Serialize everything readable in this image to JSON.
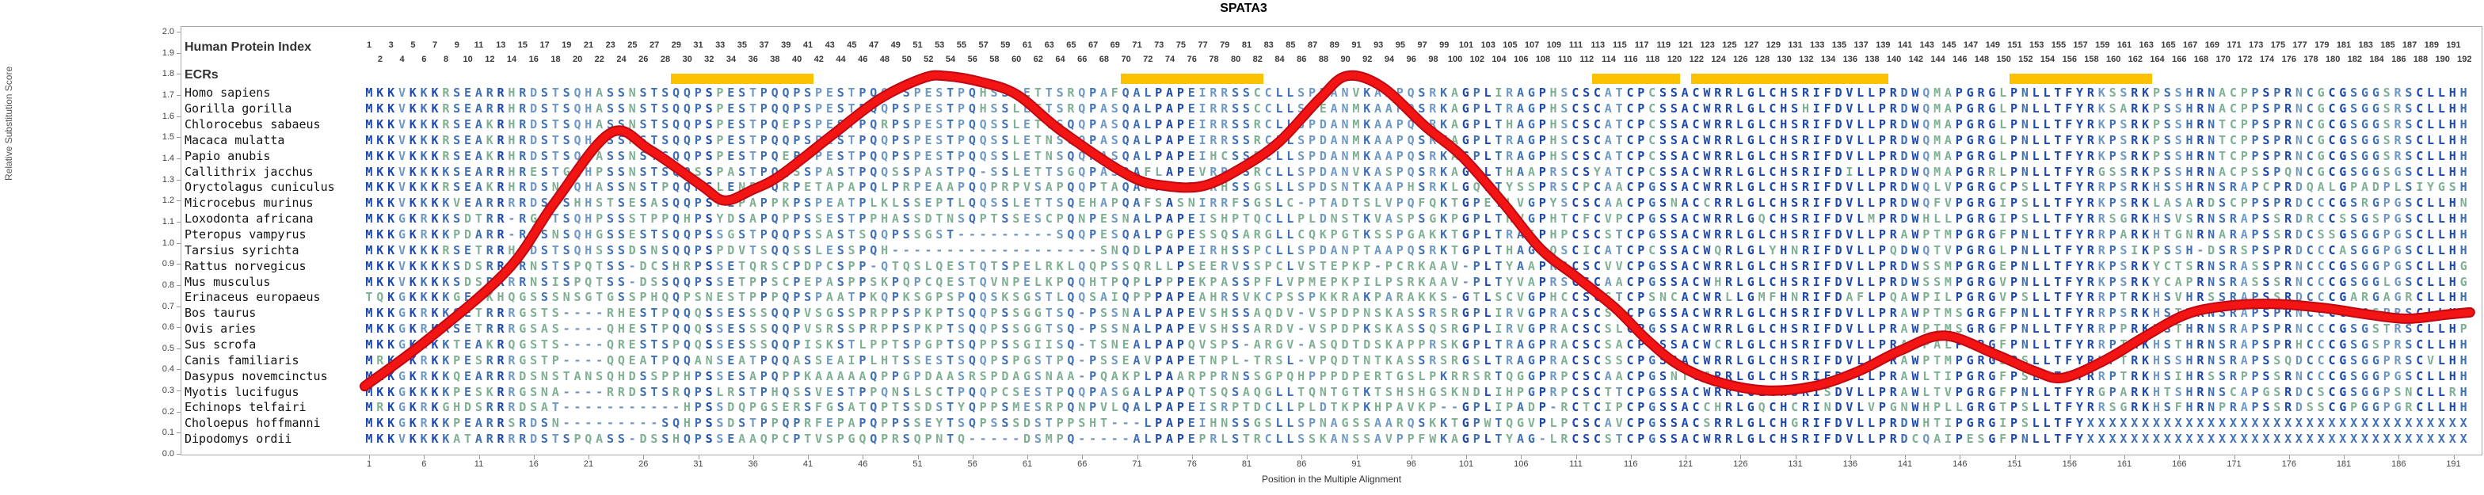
{
  "title": "SPATA3",
  "header": {
    "index_label": "Human Protein Index",
    "ecr_label": "ECRs"
  },
  "y_axis": {
    "label": "Relative Substitution Score",
    "min": 0.0,
    "max": 2.0,
    "step": 0.1
  },
  "x_axis": {
    "label": "Position in the Multiple Alignment",
    "tick_start": 1,
    "tick_step": 5,
    "tick_end": 191
  },
  "ruler": {
    "start": 1,
    "end": 192
  },
  "colors": {
    "ecr_bar": "#fcc200",
    "curve_inner": "#f31414",
    "curve_outer": "#bf0811",
    "res_high": "#1d49ac",
    "res_med": "#3f6fb5",
    "res_low": "#6f99c5",
    "res_var": "#7fb093"
  },
  "ecr_bars": [
    {
      "start_col": 29,
      "end_col": 41
    },
    {
      "start_col": 70,
      "end_col": 82
    },
    {
      "start_col": 113,
      "end_col": 120
    },
    {
      "start_col": 122,
      "end_col": 139
    },
    {
      "start_col": 151,
      "end_col": 163
    }
  ],
  "alignment": {
    "species": [
      {
        "name": "Homo sapiens",
        "seq": "MKKVKKKRSEARRHRDSTSQHASSNSTSQQPSPESTPQQPSPESTPQQPSPESTPQHSSLETTSRQPAFQALPAPEIRRSSCCLLSPDANVKAAPQSRKAGPLIRAGPHSCSCATCPCSSACWRRLGLCHSRIFDVLLPRDWQMAPGRGLPNLLTFYRKSSRKPSSHRNACPPSPRNCGCGSGGSRSCLLHH"
      },
      {
        "name": "Gorilla gorilla",
        "seq": "MKKVKKKRSEARRHRDSTSQHASSNSTSQQPSPESTPQQPSPESTPQQPSPESTPQHSSLETTSRQPASQALPAPEIRRSSCCLLSPEANMKAAPQSRKAGPLTRAGPHSCSCATCPCSSACWRRLGLCHSHIFDVLLPRDWQMAPGRGLPNLLTFYRKSARKPSSHRNACPPSPRNCGCGSGGSRSCLLHH"
      },
      {
        "name": "Chlorocebus sabaeus",
        "seq": "MKKVKKKRSEAKRHRDSTSQHASSNSTSQQPSPESTPQEPSPESTPQRPSPESTPQQSSLETTSQQPASQALPAPEIRRSSRCLLSPDANMKAAPQSRKAGPLTHAGPHSCSCATCPCSSACWRRLGLCHSRIFDVLLPRDWQMAPGRGLPNLLTFYRKPSRKPSSHRNTCPPSPRNCGCGSGGSRSCLLHH"
      },
      {
        "name": "Macaca mulatta",
        "seq": "MKKVKKKRSEAKRHRDSTSQHASSNSTSQQPSPESTPQQPSPESTPQQPSPESTPQQSSLETNSQQPASQALPAPEIRRSSRCLLSPDANMKAAPQSRKAGPLTRAGPHSCSCATCPCSSACWRRLGLCHSRIFDVLLPRDWQMAPGRGLPNLLTFYRKPSRKPSSHRNTCPPSPRNCGCGSGGSRSCLLHH"
      },
      {
        "name": "Papio anubis",
        "seq": "MKKVKKKRSEAKRHRDSTSQHASSNSTSQQPSPESTPQEPSPESTPQQPSPESTPQQSSLETNSQQPASQALPAPEIHCSSRCLLSPDANMKAAPQSRKAGPLTRAGPHSCSCATCPCSSACWRRLGLCHSRIFDVLLPRDWQMAPGRGLPNLLTFYRKPSRKPSSHRNTCPPSPRNCGCGSGGSRSCLLHH"
      },
      {
        "name": "Callithrix jacchus",
        "seq": "MKKVKKKKSEARRHRESTGQHPSSNSTSQQSSPASTPQQSSPASTPQQSSPASTPQ-SSLETTSGQPASQAFLAPEVRRSSRCLLSPDANVKASPQSRKAGPLTHAAPRSCSYATCPCSSACWRRLGLCHSRIFDILLPRDWQMAPGRRLPNLLTFYRGSSRKPSSHRNACPSSPQNCGCGSGGSGSCLLHH"
      },
      {
        "name": "Oryctolagus cuniculus",
        "seq": "MKKVKKKRSEAKRHRDSNSQHASSNSTPQQPSLENPPQRPETAPAPQLPRPEAAPQQPRPVSAPQQPTAQAPPDPESRHSSGSLLSPDSNTKAAPHSRKLGQLTYSSPRSCPCAACPGSSACWRRLGLCHSRIFDVLLPRDWQLVPGRGCPSLLTFYRRPSRKHSSHRNSRAPCPRDQALGPADPLSIYGSH"
      },
      {
        "name": "Microcebus murinus",
        "seq": "MKKVKKKKVEARRRRDSNSHHSTSESASQQPSPEPAPPKPSPEATPLKLSSEPTLQQSSLETTSQEHAPQAFSASNIRRFSGSLC-PTADTSLVPQFQKTGPETLVGPYSCSCAACPGSNACCRRLGLCHSRIFDVLLPRDWQFVPGRGIPSLLTFYRKPSRKLASARDSCPPSPRDCCCGSRGPGSCLLHN"
      },
      {
        "name": "Loxodonta africana",
        "seq": "MKKGKRKKSDTRR-RGSTSQHPSSSTPPQHPSYDSAPQPPSSESTPPHASSDTNSQPTSSESCPQNPESNALPAPEISHPTQCLLPLDNSTKVASPSGKPGPLTHVGPHTCFCVPCPGSSACWRRLGQCHSRIFDVLMPRDWHLLPGRGIPSLLTFYRRSGRKHSVSRNSRAPSSRDRCCSSGSPGSCLLHH"
      },
      {
        "name": "Pteropus vampyrus",
        "seq": "MKKGKRKKPDARR-RGSNSQHGSSESTSQQPSSGSTPQQPSSASTSQQPSSGST---------SQQPESQALPGPESSQSARGLLCQKPGTKSSPGAKKTGPLTRASPHPCSCSTCPGSSACWRRLGLCHSRIFDVLLPRAWPTMPGRGFPNLLTFYRRPARKHTGNRNARAPSSRDCSSGSGGPGSCLLHH"
      },
      {
        "name": "Tarsius syrichta",
        "seq": "MKKVKKKRSETRRHRDSTSQHSSSDSNSQQPSPDVTSQQSSLESSPQH-------------------SNQDLPAPEIRHSSPCLLSPDANPTAAPQSRKTGPLTHAGPQSCICATCPCSSACWQRLGLYHNRIFDVLLPQDWQTVPGRGLPNLLTFYRRPSIKPSSH-DSRSPSPRDCCCASGGPGSCLLHH"
      },
      {
        "name": "Rattus norvegicus",
        "seq": "MKKVKKKKSDSRRRRNSTSPQTSS-DCSHRPSSETQRSCPDPCSPP-QTQSLQESTQTSPELRKLQQPSSQRLLPSEERVSSPCLVSTEPKP-PCRKAAV-PLTYAAPRSCSCVVCPGSSACWRRLGLCHSRIFDVLLPRDWSSMPGRGEPNLLTFYRKPSRKYCTSRNSRASSPRNCCCGSGGPGSCLLHG"
      },
      {
        "name": "Mus musculus",
        "seq": "MKKVKKKKSDSRRRRNSISPQTSS-DSSQQPSSETPPSCPEPASPPSKPQPCQESTQVNPELKPQQHTPQPLPPPEKPASSPFLVPMEPKPILPSRKAAV-PLTYVAPRSCSCAACPGSSACWHRLGLCHSRIFDVLLPRDWSSMPGRGVPNLLTFYRKPSRKYCAPRNSRASSSRNCCCGSGGLGSCLLHG"
      },
      {
        "name": "Erinaceus europaeus",
        "seq": "TQKGKKKKGEAKHQGSSSNSGTGSSPHQQPSNESTPPPQPSPAATPKQPKSGPSPQQSKSGSTLQQSAIQPPPAPEAHRSVKCPSSPKKRAKPARAKKS-GTLSCVGPHCCSCSTCPSNCACWRLLGMFHNRIFDAFLPQAWPILPGRGVPSLLTFYRRPTRKHSVHRSSRAPSSRDCCCGARGAGRCLLHH"
      },
      {
        "name": "Bos taurus",
        "seq": "MKKGKRKKSETRRRGSTS----RHESTPQQQSSESSSQQPVSGSSPRPPSPKPTSQQPSSGGTSQ-PSSNALPAPEVSHSSAQDV-VSPDPNSKASSRSRGPLIRVGPRACSCSICPGSSACWRRLGLCHSRIFDVLLPRAWPTMSGRGFPNLLTFYRRPSRKHSTHRNSRAPSPRNCCCGSGSPRSCLLHP"
      },
      {
        "name": "Ovis aries",
        "seq": "MKKGKRKKSETRRRGSAS----QHESTPQQQSSESSSQQPVSRSSPRPPSPKPTSQQPSSGGTSQ-PSSNALPAPEVSHSSARDV-VSPDPKSKASSQSRGPLIRVGPRACSCSLCPGSSACWRRLGLCHSRIFDVLLPRAWPTMSGRGFPNLLTFYRRPPRKHSTHRNSRAPSPRNCCCGSGSTRSCLLHP"
      },
      {
        "name": "Sus scrofa",
        "seq": "MKKGKRKKTEAKRQGSTS----QRESTSPQQSSESSSQQPISKSTLPPTSPGPTSQPPSSGIISQ-TSNEALPAPQVSPS-ARGV-ASQDTDSKAPPRSKGPLTRAGPRACSCSACPGSSACWCRLGLCHSRIFDVLLPRAWPALPGRGFPNLLTFYRRPTRKHSTHRNSRAPSPRHCCCGSGSPRSCLLHH"
      },
      {
        "name": "Canis familiaris",
        "seq": "MRKGKRKKPESRRRGSTP----QQEATPQQANSEATPQQASSEAIPLHTSSESTSQQPSPGSTPQ-PSSEAVPAPETNPL-TRSL-VPQDTNTKASSRSRGSLTRAGPRACSCSSCPGSSACWRRLGLCHSRIFDVLLPRAWPTMPGRGSPSLLTFYRKPTRKHSSHRNSRAPSSQDCCCGSGGPRSCVLHH"
      },
      {
        "name": "Dasypus novemcinctus",
        "seq": "MKKGKRKKQEARRRDSNSTANSQHDSSPPHPSSESAPQPPKAAAAAQPPGPDAASRSPDAGSNAA-PQAKPLPAARPPRNSSGPQHPPPDPERTGSLPKRRSRTQGGPRPCSCAACPGSNTCSRRLGLCHSRIFDVLLPRAWLTIPGRGFPSLLTFYRRPTRKHSIHRSSRPPSSRNCCCGSGGPGSCLLHH"
      },
      {
        "name": "Myotis lucifugus",
        "seq": "MKKGKKKKPESKRRGSNA----RRDSTSRQPSLRSTPHQSSVESTPPQNSLSCTPQQPCSESTPQQPASGALPAPQTSQSAQGLLTQNTGTKTSHSHGSKNDLIHPGPRPCSCTTCPGSSACWRRLGLCHSRISDVLLPRAWLTVPGRGFPNLLTFYRGPARKHTSHRNSCAPGSRDCSCGSGGPSNCLLRH"
      },
      {
        "name": "Echinops telfairi",
        "seq": "MRKGKRKGHDSRRRDSAT-----------HPSSDQPGSERSFGSATQPTSSDSTYQPPSMESRPQNPVLQALPAPEISRPTDCLLPLDTKPKHPAVKP--GPLIPADP-RCTCIPCPGSSACCHRLGQCHCRINDVLVPGNWHPLLGRGTPSLLTFYRRSGRKHSFHRNPRAPSSRDSSCGPGGPGRCLLHH"
      },
      {
        "name": "Choloepus hoffmanni",
        "seq": "MKKGKRKKPEARRSRDSN---------SQHPSSDSTPPQPRFEPAPQPPSSEYTSQPSSSDSTPPSHT---LPAPEIHNSSGSLLSPNAGSSAARQSKKTGPWTQGVPLPCSCAVCPGSSACSRRLGLCHGRIFDVLLPRDWHTIPGRGIPSLLTFYXXXXXXXXXXXXXXXXXXXXXXXXXXXXXXXXXXX"
      },
      {
        "name": "Dipodomys ordii",
        "seq": "MKKVKKKKATARRRRDSTSPQASS-DSSHQPSSEAAQPCPTVSPGQQPRSQPNTQ-----DSMPQ-----ALPAPEPRLSTRCLLSSKANSSAVPPFWKAGPLTYAG-LRCSCSTCPGSSACWRRLGLCHSRIFDVLLPRDCQAIPESGFPNLLTFYXXXXXXXXXXXXXXXXXXXXXXXXXXXXXXXXXXX"
      }
    ]
  },
  "chart_data": {
    "type": "line",
    "title": "SPATA3",
    "xlabel": "Position in the Multiple Alignment",
    "ylabel": "Relative Substitution Score",
    "xlim": [
      1,
      192
    ],
    "ylim": [
      0.0,
      2.0
    ],
    "grid": false,
    "series": [
      {
        "name": "relative-substitution-score",
        "points": [
          [
            0.6,
            0.32
          ],
          [
            6.3,
            0.54
          ],
          [
            13.6,
            0.87
          ],
          [
            17.9,
            1.19
          ],
          [
            23.0,
            1.52
          ],
          [
            26.6,
            1.44
          ],
          [
            31.3,
            1.27
          ],
          [
            33.4,
            1.2
          ],
          [
            35.9,
            1.25
          ],
          [
            38.5,
            1.32
          ],
          [
            43.2,
            1.51
          ],
          [
            47.5,
            1.68
          ],
          [
            51.5,
            1.78
          ],
          [
            53.6,
            1.79
          ],
          [
            56.9,
            1.76
          ],
          [
            60.1,
            1.7
          ],
          [
            64.1,
            1.53
          ],
          [
            70.2,
            1.32
          ],
          [
            73.5,
            1.27
          ],
          [
            77.1,
            1.27
          ],
          [
            80.7,
            1.36
          ],
          [
            84.0,
            1.48
          ],
          [
            87.6,
            1.68
          ],
          [
            90.1,
            1.79
          ],
          [
            93.3,
            1.74
          ],
          [
            97.3,
            1.55
          ],
          [
            100.6,
            1.41
          ],
          [
            104.5,
            1.18
          ],
          [
            107.8,
            0.97
          ],
          [
            111.0,
            0.84
          ],
          [
            114.6,
            0.69
          ],
          [
            117.5,
            0.54
          ],
          [
            120.4,
            0.42
          ],
          [
            124.0,
            0.34
          ],
          [
            128.4,
            0.3
          ],
          [
            132.7,
            0.32
          ],
          [
            136.7,
            0.39
          ],
          [
            140.6,
            0.49
          ],
          [
            144.6,
            0.56
          ],
          [
            149.3,
            0.47
          ],
          [
            152.9,
            0.39
          ],
          [
            155.4,
            0.36
          ],
          [
            159.1,
            0.44
          ],
          [
            163.0,
            0.56
          ],
          [
            166.6,
            0.66
          ],
          [
            170.2,
            0.7
          ],
          [
            174.6,
            0.71
          ],
          [
            179.3,
            0.69
          ],
          [
            183.2,
            0.66
          ],
          [
            186.8,
            0.64
          ],
          [
            190.4,
            0.66
          ],
          [
            192.5,
            0.67
          ]
        ]
      }
    ],
    "ecr_regions_cols": [
      [
        29,
        41
      ],
      [
        70,
        82
      ],
      [
        113,
        120
      ],
      [
        122,
        139
      ],
      [
        151,
        163
      ]
    ]
  }
}
